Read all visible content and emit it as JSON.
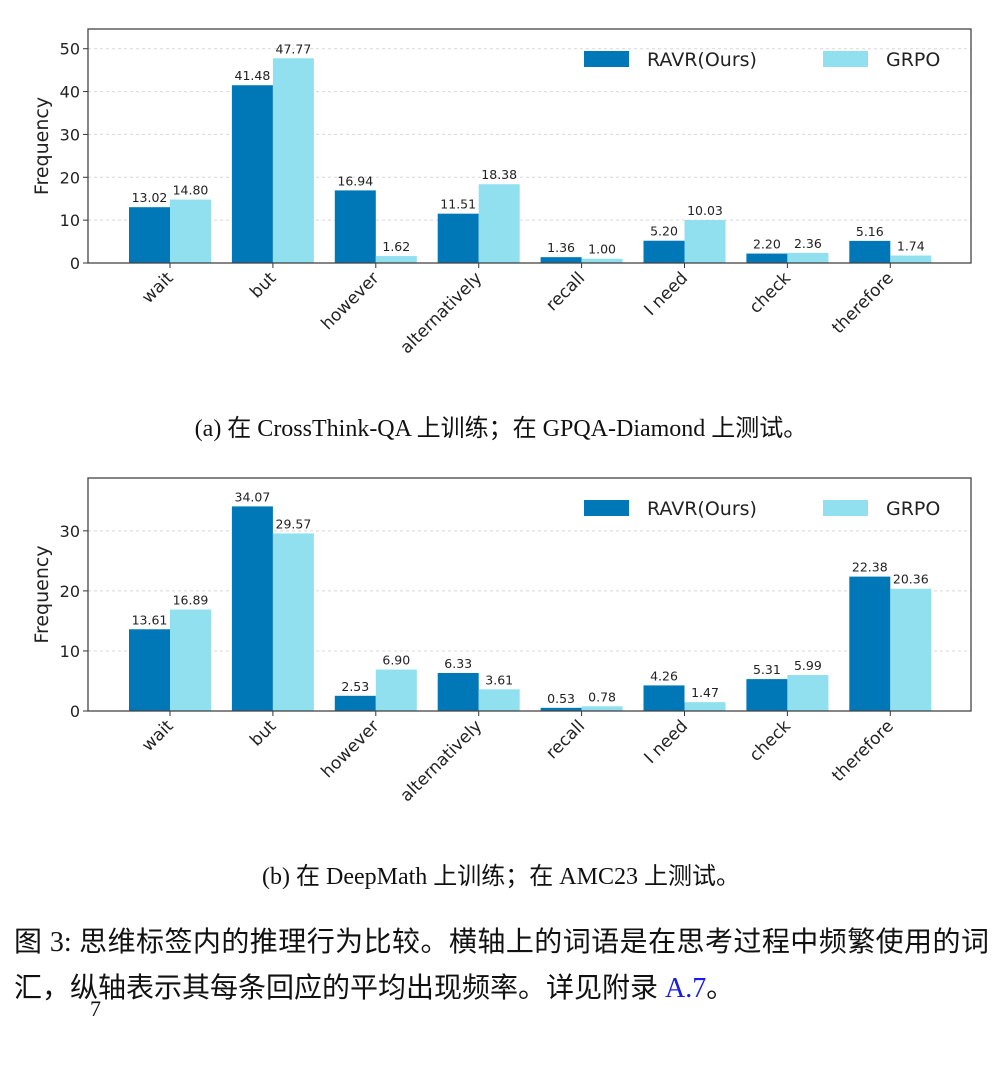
{
  "chart_data": [
    {
      "type": "bar",
      "title": "",
      "subtitle": "(a) 在 CrossThink-QA 上训练；在 GPQA-Diamond 上测试。",
      "xlabel": "",
      "ylabel": "Frequency",
      "categories": [
        "wait",
        "but",
        "however",
        "alternatively",
        "recall",
        "I need",
        "check",
        "therefore"
      ],
      "series": [
        {
          "name": "RAVR(Ours)",
          "color": "#0077b6",
          "values": [
            13.02,
            41.48,
            16.94,
            11.51,
            1.36,
            5.2,
            2.2,
            5.16
          ]
        },
        {
          "name": "GRPO",
          "color": "#90e0ef",
          "values": [
            14.8,
            47.77,
            1.62,
            18.38,
            1.0,
            10.03,
            2.36,
            1.74
          ]
        }
      ],
      "ylim": [
        0,
        54.6
      ],
      "yticks": [
        0,
        10,
        20,
        30,
        40,
        50
      ],
      "grid": true,
      "legend": "top-right"
    },
    {
      "type": "bar",
      "title": "",
      "subtitle": "(b) 在 DeepMath 上训练；在 AMC23 上测试。",
      "xlabel": "",
      "ylabel": "Frequency",
      "categories": [
        "wait",
        "but",
        "however",
        "alternatively",
        "recall",
        "I need",
        "check",
        "therefore"
      ],
      "series": [
        {
          "name": "RAVR(Ours)",
          "color": "#0077b6",
          "values": [
            13.61,
            34.07,
            2.53,
            6.33,
            0.53,
            4.26,
            5.31,
            22.38
          ]
        },
        {
          "name": "GRPO",
          "color": "#90e0ef",
          "values": [
            16.89,
            29.57,
            6.9,
            3.61,
            0.78,
            1.47,
            5.99,
            20.36
          ]
        }
      ],
      "ylim": [
        0,
        38.8
      ],
      "yticks": [
        0,
        10,
        20,
        30
      ],
      "grid": true,
      "legend": "top-right"
    }
  ],
  "caption": {
    "prefix": "图 3: 思维标签内的推理行为比较。横轴上的词语是在思考过程中频繁使用的词汇，纵轴表示其每条回应的平均出现频率。详见附录 ",
    "link": "A.7",
    "suffix": "。"
  },
  "page_number": "7"
}
